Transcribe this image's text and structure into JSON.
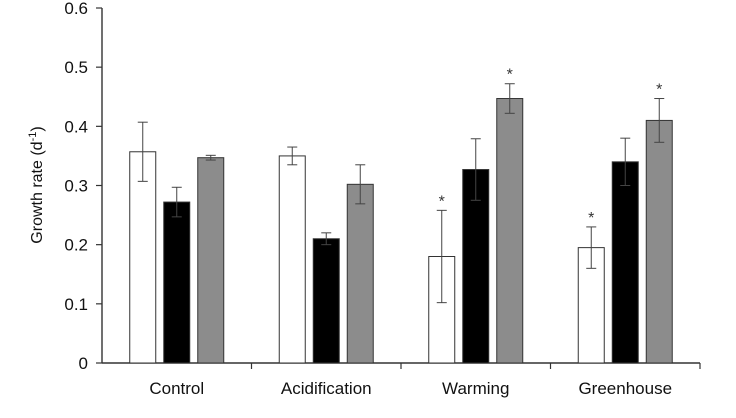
{
  "chart_data": {
    "type": "bar",
    "ylabel": "Growth rate",
    "ylabel_unit_base": "(d",
    "ylabel_unit_sup": "-1",
    "ylabel_unit_close": ")",
    "ylim": [
      0,
      0.6
    ],
    "yticks": [
      "0",
      "0.1",
      "0.2",
      "0.3",
      "0.4",
      "0.5",
      "0.6"
    ],
    "grid": false,
    "categories": [
      "Control",
      "Acidification",
      "Warming",
      "Greenhouse"
    ],
    "series": [
      {
        "color": "#ffffff",
        "values": [
          0.357,
          0.35,
          0.18,
          0.195
        ],
        "errors": [
          0.05,
          0.015,
          0.078,
          0.035
        ],
        "significant": [
          false,
          false,
          true,
          true
        ]
      },
      {
        "color": "#000000",
        "values": [
          0.272,
          0.21,
          0.327,
          0.34
        ],
        "errors": [
          0.025,
          0.01,
          0.052,
          0.04
        ],
        "significant": [
          false,
          false,
          false,
          false
        ]
      },
      {
        "color": "#8c8c8c",
        "values": [
          0.347,
          0.302,
          0.447,
          0.41
        ],
        "errors": [
          0.004,
          0.033,
          0.025,
          0.037
        ],
        "significant": [
          false,
          false,
          true,
          true
        ]
      }
    ],
    "significance_marker": "*"
  }
}
